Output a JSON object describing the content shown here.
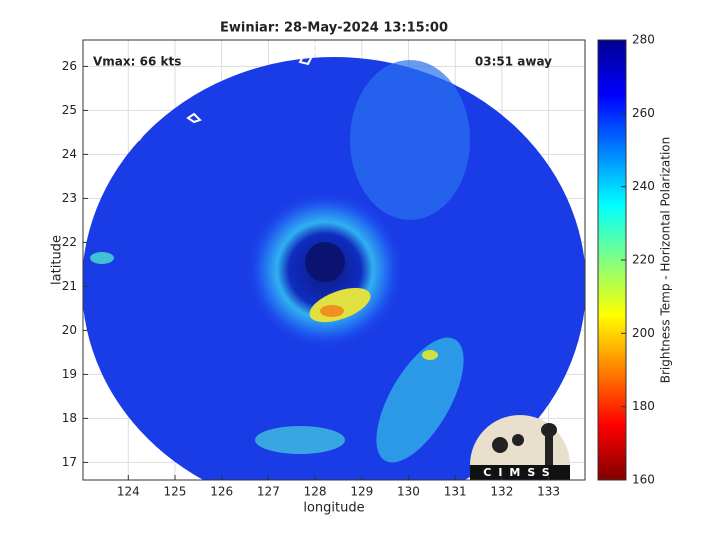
{
  "chart_data": {
    "type": "image",
    "title": "Ewiniar: 28-May-2024 13:15:00",
    "annotations": [
      "Vmax: 66 kts",
      "03:51 away"
    ],
    "xlabel": "longitude",
    "ylabel": "latitude",
    "xlim": [
      123.03,
      133.78
    ],
    "xticks": [
      124,
      125,
      126,
      127,
      128,
      129,
      130,
      131,
      132,
      133
    ],
    "ylim": [
      16.6,
      26.6
    ],
    "yticks": [
      17,
      18,
      19,
      20,
      21,
      22,
      23,
      24,
      25,
      26
    ],
    "grid": true,
    "colorbar": {
      "label": "Brightness Temp - Horizontal Polarization",
      "clim": [
        160,
        280
      ],
      "ticks": [
        160,
        180,
        200,
        220,
        240,
        260,
        280
      ],
      "colormap": [
        "#800000",
        "#ff0000",
        "#ff8000",
        "#ffff00",
        "#80ff80",
        "#00ffff",
        "#0080ff",
        "#0000ff",
        "#00008f"
      ]
    },
    "logo": "CIMSS"
  }
}
